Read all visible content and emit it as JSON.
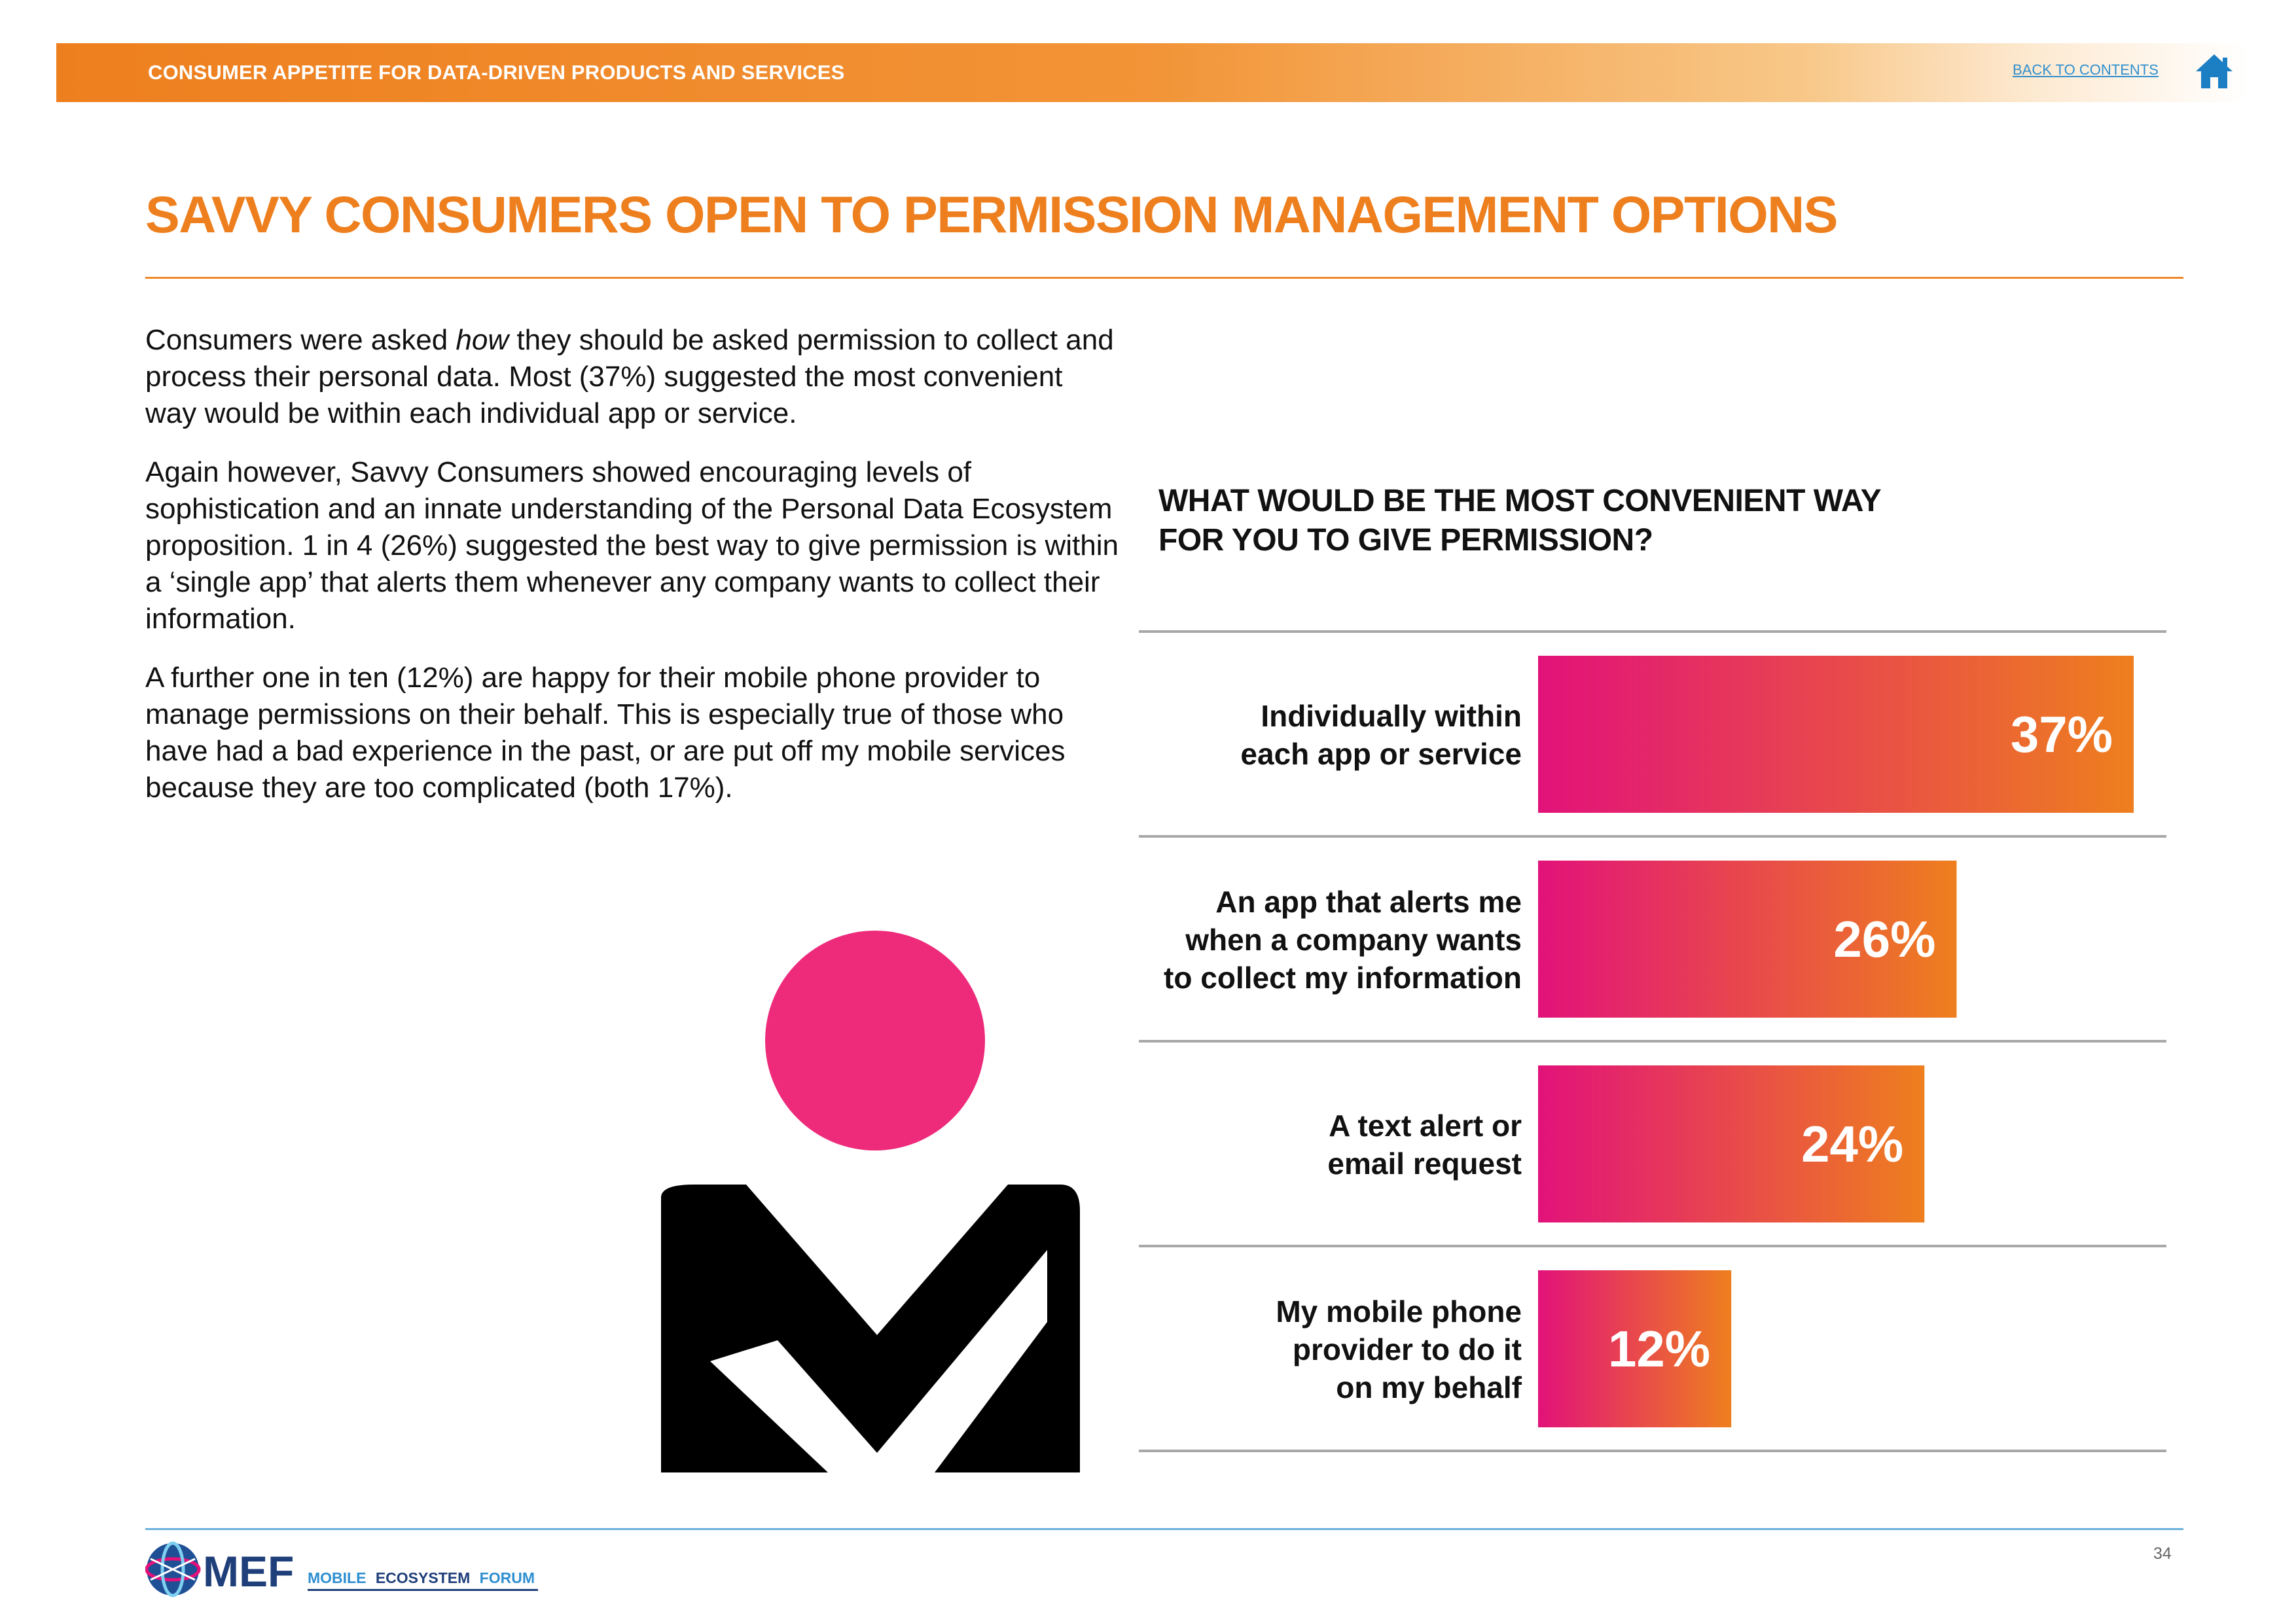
{
  "header": {
    "section_title": "CONSUMER APPETITE FOR DATA-DRIVEN PRODUCTS AND SERVICES",
    "back_link": "BACK TO CONTENTS",
    "home_icon": "home-icon"
  },
  "page_title": "SAVVY CONSUMERS OPEN TO PERMISSION MANAGEMENT OPTIONS",
  "body": {
    "p1_before": "Consumers were asked ",
    "p1_italic": "how",
    "p1_after": " they should be asked permission to collect and process their personal data. Most (37%) suggested the most convenient way would be within each individual app or service.",
    "p2": "Again however, Savvy Consumers showed encouraging levels of sophistication and an innate understanding of the Personal Data Ecosystem proposition. 1 in 4 (26%) suggested the best way to give permission is within a ‘single app’ that alerts them whenever any company wants to collect their information.",
    "p3": "A further one in ten (12%) are happy for their mobile phone provider to manage permissions on their behalf. This is especially true of those who have had a bad experience in the past, or are put off my mobile services because they are too complicated (both 17%)."
  },
  "chart_data": {
    "type": "bar",
    "orientation": "horizontal",
    "title_lines": [
      "WHAT WOULD BE THE MOST CONVENIENT WAY",
      "FOR YOU TO GIVE PERMISSION?"
    ],
    "categories": [
      [
        "Individually within",
        "each app or service"
      ],
      [
        "An app that alerts me",
        "when a company wants",
        "to collect my information"
      ],
      [
        "A text alert or",
        "email request"
      ],
      [
        "My mobile phone",
        "provider to do it",
        "on my behalf"
      ]
    ],
    "values": [
      37,
      26,
      24,
      12
    ],
    "value_labels": [
      "37%",
      "26%",
      "24%",
      "12%"
    ],
    "unit": "%",
    "colors": {
      "bar_start": "#e2127a",
      "bar_end": "#ee7f1e",
      "separator": "#a8a8a8"
    }
  },
  "figure": {
    "icon": "person-checkmark-icon",
    "head_color": "#ee2b7b",
    "body_color": "#000000"
  },
  "footer": {
    "logo_letters": "MEF",
    "logo_tagline_1": "MOBILE",
    "logo_tagline_2": "ECOSYSTEM",
    "logo_tagline_3": "FORUM",
    "page_number": "34"
  },
  "colors": {
    "accent": "#ee7f1e",
    "link": "#2f8fcf",
    "footer_rule": "#6ab0dd"
  }
}
